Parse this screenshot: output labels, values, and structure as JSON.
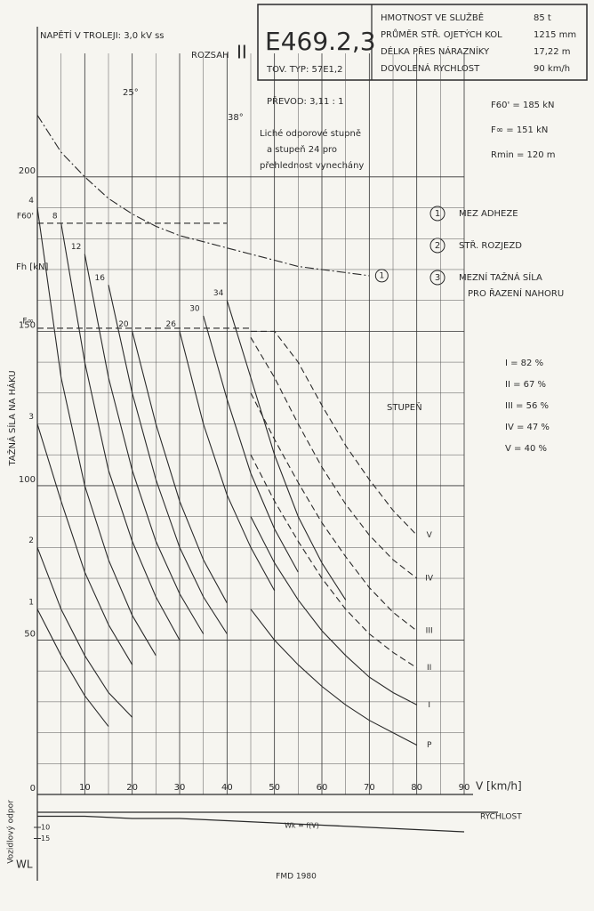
{
  "header": {
    "voltage": "NAPĚTÍ V TROLEJI: 3,0 kV ss",
    "range_label": "ROZSAH",
    "range": "II",
    "model": "E469.2,3",
    "type": "TOV. TYP: 57E1,2",
    "specs": [
      [
        "HMOTNOST VE SLUŽBĚ",
        "85 t"
      ],
      [
        "PRŮMĚR STŘ. OJETÝCH KOL",
        "1215 mm"
      ],
      [
        "DÉLKA PŘES NÁRAZNÍKY",
        "17,22 m"
      ],
      [
        "DOVOLENÁ RYCHLOST",
        "90 km/h"
      ]
    ],
    "gear": "PŘEVOD: 3,11 : 1",
    "note": [
      "Liché odporové stupně",
      "a stupeň 24 pro",
      "přehlednost vynechány"
    ],
    "constants": [
      "F60' = 185 kN",
      "F∞ = 151 kN",
      "Rmin = 120 m"
    ],
    "legend": [
      {
        "n": "1",
        "text": [
          "MEZ ADHEZE"
        ]
      },
      {
        "n": "2",
        "text": [
          "STŘ. ROZJEZD"
        ]
      },
      {
        "n": "3",
        "text": [
          "MEZNÍ TAŽNÁ SÍLA",
          "PRO ŘAZENÍ NAHORU"
        ]
      }
    ],
    "ratios": [
      "I = 82 %",
      "II = 67 %",
      "III = 56 %",
      "IV = 47 %",
      "V = 40 %"
    ],
    "notch_label": "STUPEŇ",
    "angles": [
      "25°",
      "38°"
    ]
  },
  "chart_data": [
    {
      "type": "line",
      "ylabel": "TAŽNÁ SÍLA NA HÁKU",
      "yunit": "Fh [kN]",
      "xlabel": "V [km/h]",
      "color": "#2a2a2a",
      "grid": true,
      "xlim": [
        0,
        90
      ],
      "xticks": [
        0,
        10,
        20,
        30,
        40,
        50,
        60,
        70,
        80,
        90
      ],
      "ylim": [
        0,
        240
      ],
      "yticks": [
        0,
        50,
        100,
        150,
        200
      ],
      "x": [
        0,
        5,
        10,
        15,
        20,
        25,
        30,
        35,
        40,
        45,
        50,
        55,
        60,
        65,
        70,
        75,
        80,
        85,
        90
      ],
      "series": [
        {
          "name": "1",
          "style": "solid",
          "values": [
            60,
            45,
            32,
            22,
            null,
            null,
            null,
            null,
            null,
            null,
            null,
            null,
            null,
            null,
            null,
            null,
            null,
            null,
            null
          ]
        },
        {
          "name": "2",
          "style": "solid",
          "values": [
            80,
            60,
            45,
            33,
            25,
            null,
            null,
            null,
            null,
            null,
            null,
            null,
            null,
            null,
            null,
            null,
            null,
            null,
            null
          ]
        },
        {
          "name": "3",
          "style": "solid",
          "values": [
            120,
            95,
            72,
            55,
            42,
            null,
            null,
            null,
            null,
            null,
            null,
            null,
            null,
            null,
            null,
            null,
            null,
            null,
            null
          ]
        },
        {
          "name": "4",
          "style": "solid",
          "values": [
            190,
            135,
            100,
            76,
            58,
            45,
            null,
            null,
            null,
            null,
            null,
            null,
            null,
            null,
            null,
            null,
            null,
            null,
            null
          ]
        },
        {
          "name": "8",
          "style": "solid",
          "values": [
            null,
            185,
            140,
            105,
            82,
            64,
            50,
            null,
            null,
            null,
            null,
            null,
            null,
            null,
            null,
            null,
            null,
            null,
            null
          ]
        },
        {
          "name": "12",
          "style": "solid",
          "values": [
            null,
            null,
            175,
            135,
            105,
            82,
            65,
            52,
            null,
            null,
            null,
            null,
            null,
            null,
            null,
            null,
            null,
            null,
            null
          ]
        },
        {
          "name": "16",
          "style": "solid",
          "values": [
            null,
            null,
            null,
            165,
            130,
            102,
            80,
            64,
            52,
            null,
            null,
            null,
            null,
            null,
            null,
            null,
            null,
            null,
            null
          ]
        },
        {
          "name": "20",
          "style": "solid",
          "values": [
            null,
            null,
            null,
            null,
            150,
            120,
            95,
            76,
            62,
            null,
            null,
            null,
            null,
            null,
            null,
            null,
            null,
            null,
            null
          ]
        },
        {
          "name": "26",
          "style": "solid",
          "values": [
            null,
            null,
            null,
            null,
            null,
            null,
            150,
            120,
            97,
            80,
            66,
            null,
            null,
            null,
            null,
            null,
            null,
            null,
            null
          ]
        },
        {
          "name": "30",
          "style": "solid",
          "values": [
            null,
            null,
            null,
            null,
            null,
            null,
            null,
            155,
            128,
            104,
            86,
            72,
            null,
            null,
            null,
            null,
            null,
            null,
            null
          ]
        },
        {
          "name": "34",
          "style": "solid",
          "values": [
            null,
            null,
            null,
            null,
            null,
            null,
            null,
            null,
            160,
            135,
            110,
            90,
            75,
            63,
            null,
            null,
            null,
            null,
            null
          ]
        },
        {
          "name": "P",
          "style": "solid",
          "values": [
            null,
            null,
            null,
            null,
            null,
            null,
            null,
            null,
            null,
            60,
            50,
            42,
            35,
            29,
            24,
            20,
            16,
            null,
            null
          ]
        },
        {
          "name": "I",
          "style": "solid",
          "values": [
            null,
            null,
            null,
            null,
            null,
            null,
            null,
            null,
            null,
            90,
            75,
            63,
            53,
            45,
            38,
            33,
            29,
            null,
            null
          ]
        },
        {
          "name": "II",
          "style": "dashed",
          "values": [
            null,
            null,
            null,
            null,
            null,
            null,
            null,
            null,
            null,
            110,
            95,
            82,
            70,
            60,
            52,
            46,
            41,
            null,
            null
          ]
        },
        {
          "name": "III",
          "style": "dashed",
          "values": [
            null,
            null,
            null,
            null,
            null,
            null,
            null,
            null,
            null,
            130,
            115,
            101,
            88,
            77,
            67,
            59,
            53,
            null,
            null
          ]
        },
        {
          "name": "IV",
          "style": "dashed",
          "values": [
            null,
            null,
            null,
            null,
            null,
            null,
            null,
            null,
            null,
            148,
            135,
            120,
            106,
            94,
            84,
            76,
            70,
            null,
            null
          ]
        },
        {
          "name": "V",
          "style": "dashed",
          "values": [
            null,
            null,
            null,
            null,
            null,
            null,
            null,
            null,
            null,
            150,
            150,
            140,
            126,
            113,
            102,
            92,
            84,
            null,
            null
          ]
        },
        {
          "name": "1",
          "style": "dashdot",
          "values": [
            220,
            208,
            200,
            193,
            188,
            184,
            181,
            179,
            177,
            175,
            173,
            171,
            170,
            169,
            168,
            null,
            null,
            null,
            null
          ]
        },
        {
          "name": "F60'",
          "style": "dashed",
          "values": [
            185,
            185,
            185,
            185,
            185,
            185,
            185,
            185,
            185,
            null,
            null,
            null,
            null,
            null,
            null,
            null,
            null,
            null,
            null
          ]
        },
        {
          "name": "F∞",
          "style": "dashed",
          "values": [
            151,
            151,
            151,
            151,
            151,
            151,
            151,
            151,
            151,
            151,
            null,
            null,
            null,
            null,
            null,
            null,
            null,
            null,
            null
          ]
        }
      ]
    },
    {
      "type": "line",
      "ylabel": "Vozidlový odpor",
      "yunit": "WL",
      "xlabel": "RYCHLOST",
      "color": "#2a2a2a",
      "xlim": [
        0,
        90
      ],
      "ylim": [
        0,
        17
      ],
      "yticks": [
        10,
        15
      ],
      "x": [
        0,
        10,
        20,
        30,
        40,
        50,
        60,
        70,
        80,
        90
      ],
      "series": [
        {
          "name": "Wk = f(V)",
          "style": "solid",
          "values": [
            5,
            5,
            6,
            6,
            7,
            8,
            9,
            10,
            11,
            12
          ]
        }
      ]
    }
  ],
  "footer": "FMD 1980"
}
